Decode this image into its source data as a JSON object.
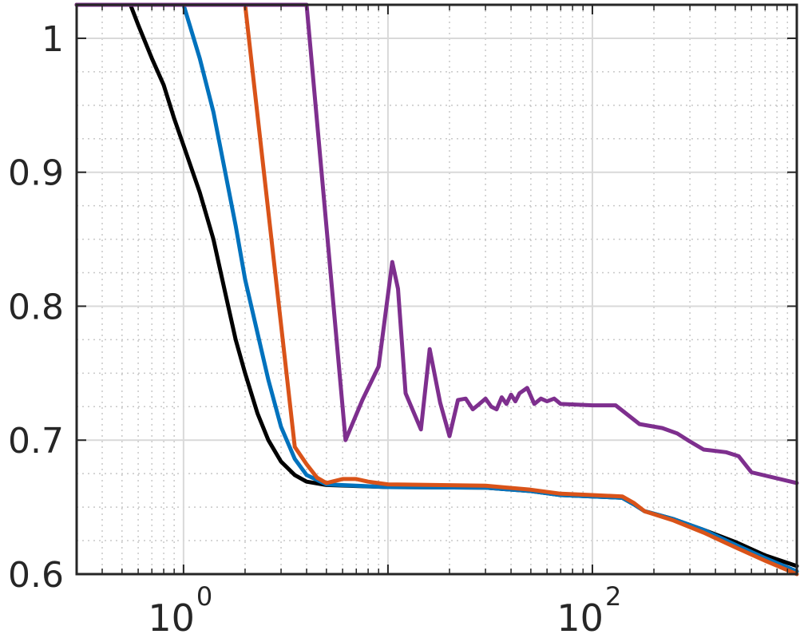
{
  "chart_data": {
    "type": "line",
    "title": "",
    "xlabel": "",
    "ylabel": "",
    "x_scale": "log",
    "xlim": [
      0.3,
      1000
    ],
    "ylim": [
      0.6,
      1.025
    ],
    "grid": "major-and-minor",
    "box": true,
    "y_ticks": [
      {
        "value": 0.6,
        "label": "0.6"
      },
      {
        "value": 0.7,
        "label": "0.7"
      },
      {
        "value": 0.8,
        "label": "0.8"
      },
      {
        "value": 0.9,
        "label": "0.9"
      },
      {
        "value": 1.0,
        "label": "1"
      }
    ],
    "x_ticks": [
      {
        "value": 1,
        "base": "10",
        "exp": "0"
      },
      {
        "value": 100,
        "base": "10",
        "exp": "2"
      }
    ],
    "series": [
      {
        "color": "#000000",
        "points": [
          [
            0.3,
            1.025
          ],
          [
            0.55,
            1.025
          ],
          [
            0.6,
            1.01
          ],
          [
            0.7,
            0.985
          ],
          [
            0.8,
            0.965
          ],
          [
            0.9,
            0.94
          ],
          [
            1.0,
            0.92
          ],
          [
            1.2,
            0.885
          ],
          [
            1.4,
            0.85
          ],
          [
            1.6,
            0.81
          ],
          [
            1.8,
            0.775
          ],
          [
            2.0,
            0.75
          ],
          [
            2.3,
            0.72
          ],
          [
            2.6,
            0.7
          ],
          [
            3.0,
            0.684
          ],
          [
            3.5,
            0.674
          ],
          [
            4.0,
            0.669
          ],
          [
            5.0,
            0.6665
          ],
          [
            10,
            0.665
          ],
          [
            30,
            0.6645
          ],
          [
            50,
            0.662
          ],
          [
            70,
            0.659
          ],
          [
            100,
            0.658
          ],
          [
            140,
            0.657
          ],
          [
            160,
            0.652
          ],
          [
            180,
            0.647
          ],
          [
            250,
            0.641
          ],
          [
            350,
            0.633
          ],
          [
            500,
            0.624
          ],
          [
            700,
            0.614
          ],
          [
            1000,
            0.606
          ]
        ]
      },
      {
        "color": "#0072BD",
        "points": [
          [
            0.3,
            1.025
          ],
          [
            0.72,
            1.025
          ],
          [
            1.0,
            1.025
          ],
          [
            1.2,
            0.985
          ],
          [
            1.4,
            0.945
          ],
          [
            1.6,
            0.9
          ],
          [
            1.8,
            0.86
          ],
          [
            2.0,
            0.82
          ],
          [
            2.3,
            0.78
          ],
          [
            2.6,
            0.745
          ],
          [
            3.0,
            0.71
          ],
          [
            3.5,
            0.686
          ],
          [
            4.0,
            0.674
          ],
          [
            5.0,
            0.667
          ],
          [
            10,
            0.665
          ],
          [
            30,
            0.6645
          ],
          [
            50,
            0.662
          ],
          [
            70,
            0.659
          ],
          [
            100,
            0.658
          ],
          [
            140,
            0.657
          ],
          [
            160,
            0.652
          ],
          [
            180,
            0.647
          ],
          [
            250,
            0.641
          ],
          [
            350,
            0.633
          ],
          [
            500,
            0.622
          ],
          [
            700,
            0.612
          ],
          [
            1000,
            0.602
          ]
        ]
      },
      {
        "color": "#D95319",
        "points": [
          [
            0.3,
            1.025
          ],
          [
            1.45,
            1.025
          ],
          [
            2.0,
            1.025
          ],
          [
            3.5,
            0.695
          ],
          [
            4.0,
            0.682
          ],
          [
            4.5,
            0.672
          ],
          [
            5.0,
            0.668
          ],
          [
            6.0,
            0.671
          ],
          [
            7.0,
            0.671
          ],
          [
            8.0,
            0.669
          ],
          [
            10,
            0.667
          ],
          [
            30,
            0.666
          ],
          [
            50,
            0.663
          ],
          [
            70,
            0.66
          ],
          [
            100,
            0.659
          ],
          [
            140,
            0.658
          ],
          [
            160,
            0.653
          ],
          [
            180,
            0.647
          ],
          [
            250,
            0.64
          ],
          [
            350,
            0.631
          ],
          [
            500,
            0.62
          ],
          [
            700,
            0.61
          ],
          [
            1000,
            0.6
          ]
        ]
      },
      {
        "color": "#7E2F8E",
        "points": [
          [
            0.3,
            1.025
          ],
          [
            3.0,
            1.025
          ],
          [
            4.0,
            1.025
          ],
          [
            6.2,
            0.7
          ],
          [
            7.5,
            0.73
          ],
          [
            9.0,
            0.755
          ],
          [
            10.5,
            0.833
          ],
          [
            11.2,
            0.813
          ],
          [
            12.2,
            0.735
          ],
          [
            14.5,
            0.708
          ],
          [
            16,
            0.768
          ],
          [
            18,
            0.728
          ],
          [
            20,
            0.703
          ],
          [
            22,
            0.73
          ],
          [
            24,
            0.731
          ],
          [
            26,
            0.723
          ],
          [
            28,
            0.727
          ],
          [
            30,
            0.731
          ],
          [
            32,
            0.725
          ],
          [
            34,
            0.723
          ],
          [
            36,
            0.732
          ],
          [
            38,
            0.727
          ],
          [
            40,
            0.734
          ],
          [
            42,
            0.729
          ],
          [
            44,
            0.735
          ],
          [
            48,
            0.739
          ],
          [
            52,
            0.727
          ],
          [
            56,
            0.731
          ],
          [
            60,
            0.729
          ],
          [
            65,
            0.731
          ],
          [
            70,
            0.727
          ],
          [
            100,
            0.726
          ],
          [
            130,
            0.726
          ],
          [
            170,
            0.712
          ],
          [
            220,
            0.709
          ],
          [
            260,
            0.705
          ],
          [
            300,
            0.699
          ],
          [
            350,
            0.693
          ],
          [
            450,
            0.691
          ],
          [
            520,
            0.688
          ],
          [
            600,
            0.676
          ],
          [
            1000,
            0.668
          ]
        ]
      }
    ]
  }
}
